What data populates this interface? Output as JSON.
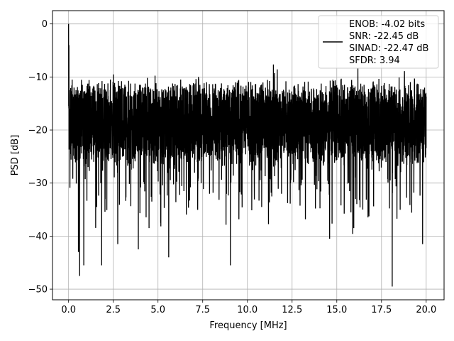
{
  "chart_data": {
    "type": "line",
    "xlabel": "Frequency [MHz]",
    "ylabel": "PSD [dB]",
    "xlim": [
      -0.9,
      21.0
    ],
    "ylim": [
      -52,
      2.5
    ],
    "xticks": [
      0.0,
      2.5,
      5.0,
      7.5,
      10.0,
      12.5,
      15.0,
      17.5,
      20.0
    ],
    "xtick_labels": [
      "0.0",
      "2.5",
      "5.0",
      "7.5",
      "10.0",
      "12.5",
      "15.0",
      "17.5",
      "20.0"
    ],
    "yticks": [
      0,
      -10,
      -20,
      -30,
      -40,
      -50
    ],
    "ytick_labels": [
      "0",
      "−10",
      "−20",
      "−30",
      "−40",
      "−50"
    ],
    "grid": true,
    "legend_position": "top-right",
    "series": [
      {
        "name": "ENOB: -4.02 bits\nSNR: -22.45 dB\nSINAD: -22.47 dB\nSFDR: 3.94",
        "color": "#000000",
        "x_start": 0.0,
        "x_end": 20.0,
        "peaks": [
          [
            0.0,
            0.0
          ],
          [
            0.02,
            -4.0
          ],
          [
            0.2,
            -10.5
          ]
        ],
        "dips": [
          [
            0.55,
            -43.0
          ],
          [
            0.62,
            -47.5
          ],
          [
            0.85,
            -45.5
          ],
          [
            1.85,
            -45.5
          ],
          [
            2.75,
            -41.5
          ],
          [
            3.9,
            -42.5
          ],
          [
            4.5,
            -38.5
          ],
          [
            5.15,
            -37.5
          ],
          [
            5.6,
            -44.0
          ],
          [
            9.05,
            -45.5
          ],
          [
            14.6,
            -40.5
          ],
          [
            15.95,
            -38.5
          ],
          [
            18.1,
            -49.5
          ],
          [
            19.8,
            -41.5
          ]
        ],
        "noise_band_db": [
          -25,
          -12
        ]
      }
    ]
  }
}
